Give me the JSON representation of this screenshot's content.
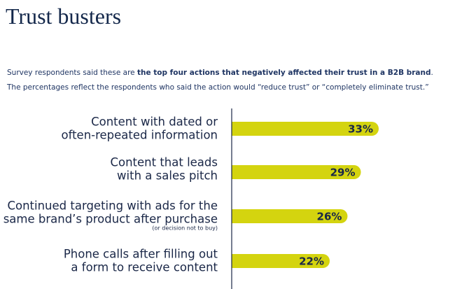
{
  "chart_data": {
    "type": "bar",
    "orientation": "horizontal",
    "title": "Trust busters",
    "subtitle": [
      [
        "Survey respondents said these are ",
        "the top four actions that negatively affected their trust in a B2B brand",
        "."
      ],
      [
        "The percentages reflect the respondents who said the action would “reduce trust” or “completely eliminate trust.”"
      ]
    ],
    "categories": [
      [
        "Content with dated or",
        "often-repeated information"
      ],
      [
        "Content that leads",
        "with a sales pitch"
      ],
      [
        "Continued targeting with ads for the",
        "same brand’s product after purchase"
      ],
      [
        "Phone calls after filling out",
        "a form to receive content"
      ]
    ],
    "annotation": "(or decision not to buy)",
    "values": [
      33,
      29,
      26,
      22
    ],
    "value_labels": [
      "33%",
      "29%",
      "26%",
      "22%"
    ],
    "color": "#d4d40f",
    "axis_color": "#1a2747"
  }
}
